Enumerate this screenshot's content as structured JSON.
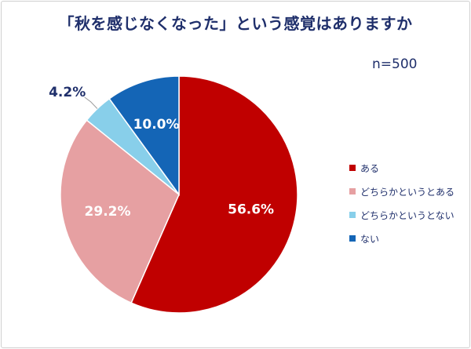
{
  "chart_data": {
    "type": "pie",
    "title": "「秋を感じなくなった」という感覚はありますか",
    "subtitle": "n=500",
    "categories": [
      "ある",
      "どちらかというとある",
      "どちらかというとない",
      "ない"
    ],
    "values": [
      56.6,
      29.2,
      4.2,
      10.0
    ],
    "value_labels": [
      "56.6%",
      "29.2%",
      "4.2%",
      "10.0%"
    ],
    "colors": [
      "#c00000",
      "#e6a0a2",
      "#88cfea",
      "#1465b6"
    ],
    "legend_position": "right",
    "start_angle": "top",
    "direction": "clockwise"
  }
}
